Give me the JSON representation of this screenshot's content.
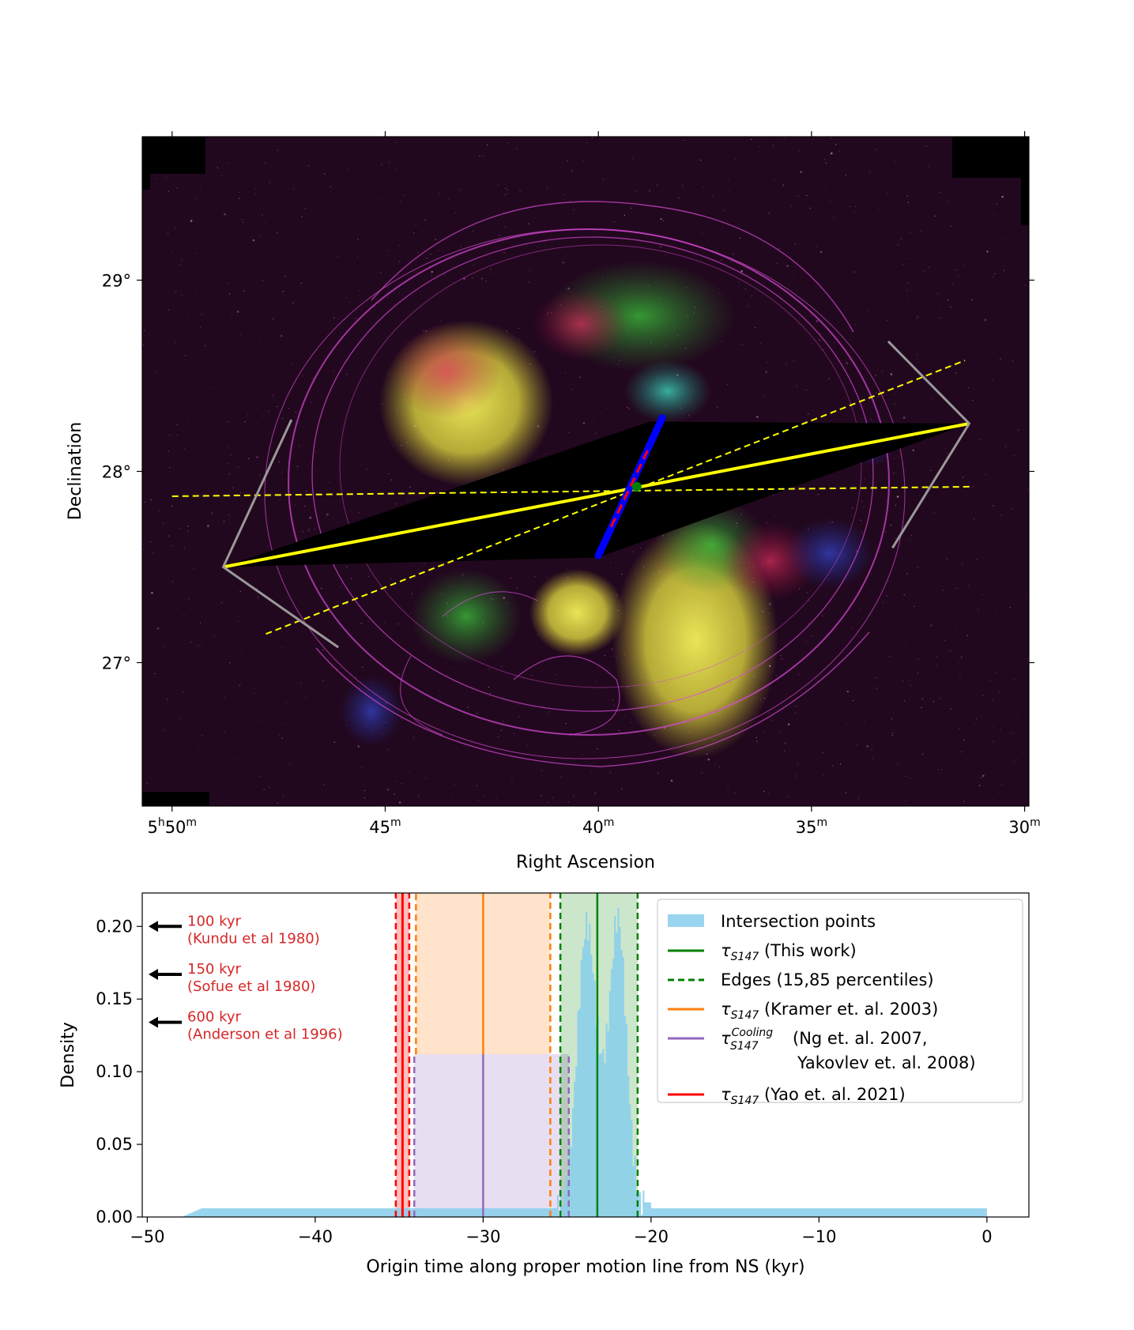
{
  "chart_data": [
    {
      "type": "scatter",
      "panel": "sky-image",
      "xlabel": "Right Ascension",
      "ylabel": "Declination",
      "x_ticks": [
        {
          "ra_min": 50,
          "h": "5",
          "label": "50"
        },
        {
          "ra_min": 45,
          "h": "",
          "label": "45"
        },
        {
          "ra_min": 40,
          "h": "",
          "label": "40"
        },
        {
          "ra_min": 35,
          "h": "",
          "label": "35"
        },
        {
          "ra_min": 30,
          "h": "",
          "label": "30"
        }
      ],
      "y_ticks": [
        {
          "dec": 29,
          "label": "29°"
        },
        {
          "dec": 28,
          "label": "28°"
        },
        {
          "dec": 27,
          "label": "27°"
        }
      ],
      "xlim_ra_min": [
        50.7,
        29.9
      ],
      "ylim_dec": [
        26.25,
        29.75
      ],
      "background": "optical/multiwavelength composite image of supernova remnant S147",
      "overlays": {
        "proper_motion_line": {
          "color": "#ffff00",
          "from": [
            48.8,
            27.5
          ],
          "to": [
            31.3,
            28.25
          ]
        },
        "uncertainty_lines": {
          "color": "#ffff00",
          "style": "dashed",
          "lines": [
            [
              [
                50.0,
                27.87
              ],
              [
                31.2,
                27.92
              ]
            ],
            [
              [
                47.8,
                27.15
              ],
              [
                31.4,
                28.58
              ]
            ]
          ]
        },
        "error_region": {
          "color": "#000000",
          "polygon": [
            [
              48.8,
              27.5
            ],
            [
              40.0,
              27.55
            ],
            [
              31.3,
              28.25
            ],
            [
              38.8,
              28.26
            ]
          ]
        },
        "center_track": {
          "color": "#0000ff",
          "overlay_color": "#ff0000",
          "from": [
            40.0,
            27.56
          ],
          "to": [
            38.5,
            28.28
          ],
          "center": [
            39.1,
            27.92
          ],
          "center_color": "#008000"
        },
        "cone_lines": {
          "color": "#999999",
          "segments": [
            [
              [
                47.2,
                28.27
              ],
              [
                48.8,
                27.5
              ],
              [
                46.1,
                27.08
              ]
            ],
            [
              [
                33.2,
                28.68
              ],
              [
                31.3,
                28.25
              ],
              [
                33.1,
                27.6
              ]
            ]
          ]
        }
      }
    },
    {
      "type": "bar",
      "panel": "histogram",
      "xlabel": "Origin time along proper motion line from NS (kyr)",
      "ylabel": "Density",
      "xlim": [
        -50.3,
        2.5
      ],
      "ylim": [
        0,
        0.223
      ],
      "x_ticks": [
        -50,
        -40,
        -30,
        -20,
        -10,
        0
      ],
      "x_tick_labels": [
        "−50",
        "−40",
        "−30",
        "−20",
        "−10",
        "0"
      ],
      "y_ticks": [
        0.0,
        0.05,
        0.1,
        0.15,
        0.2
      ],
      "y_tick_labels": [
        "0.00",
        "0.05",
        "0.10",
        "0.15",
        "0.20"
      ],
      "series": [
        {
          "name": "Intersection points",
          "kind": "histogram",
          "color": "#87ceeb",
          "description": "flat baseline ~0.006 from -48 to 0 kyr, with two peaks near -23.9 and -21.9 kyr reaching ~0.20"
        },
        {
          "name": "τS147 (This work)",
          "kind": "vline",
          "color": "#008000",
          "x": -23.2
        },
        {
          "name": "Edges (15,85 percentiles)",
          "kind": "vline-dashed",
          "color": "#008000",
          "x": [
            -25.4,
            -20.8
          ]
        },
        {
          "name": "τS147 (Kramer et. al. 2003)",
          "kind": "vline",
          "color": "#ff7f0e",
          "x": -30.0,
          "band": [
            -34.0,
            -26.0
          ],
          "band_top": 0.112
        },
        {
          "name": "τS147Cooling (Ng et. al. 2007, Yakovlev et. al. 2008)",
          "kind": "vline",
          "color": "#9467bd",
          "x": -30.0,
          "band": [
            -34.1,
            -24.9
          ],
          "band_top": 0.112
        },
        {
          "name": "τS147 (Yao et. al. 2021)",
          "kind": "vline",
          "color": "#ff0000",
          "x": -34.8,
          "band": [
            -35.2,
            -34.4
          ]
        }
      ],
      "legend": {
        "placement": "top-right",
        "entries": [
          {
            "sym": "patch",
            "color": "#87ceeb",
            "text": "Intersection points"
          },
          {
            "sym": "line",
            "color": "#008000",
            "tau": true,
            "text": " (This work)"
          },
          {
            "sym": "dashed",
            "color": "#008000",
            "text": "Edges (15,85 percentiles)"
          },
          {
            "sym": "line",
            "color": "#ff7f0e",
            "tau": true,
            "text": " (Kramer et. al. 2003)"
          },
          {
            "sym": "line",
            "color": "#9467bd",
            "tau": true,
            "sup": "Cooling",
            "text": " (Ng et. al. 2007,",
            "text2": "Yakovlev et. al. 2008)"
          },
          {
            "sym": "line",
            "color": "#ff0000",
            "tau": true,
            "text": " (Yao et. al. 2021)"
          }
        ]
      },
      "annotations": [
        {
          "arrow_y": 0.2,
          "line1": "100 kyr",
          "line2": "(Kundu et al 1980)",
          "color": "#d62728"
        },
        {
          "arrow_y": 0.167,
          "line1": "150 kyr",
          "line2": "(Sofue et al 1980)",
          "color": "#d62728"
        },
        {
          "arrow_y": 0.134,
          "line1": "600 kyr",
          "line2": "(Anderson et al 1996)",
          "color": "#d62728"
        }
      ]
    }
  ]
}
